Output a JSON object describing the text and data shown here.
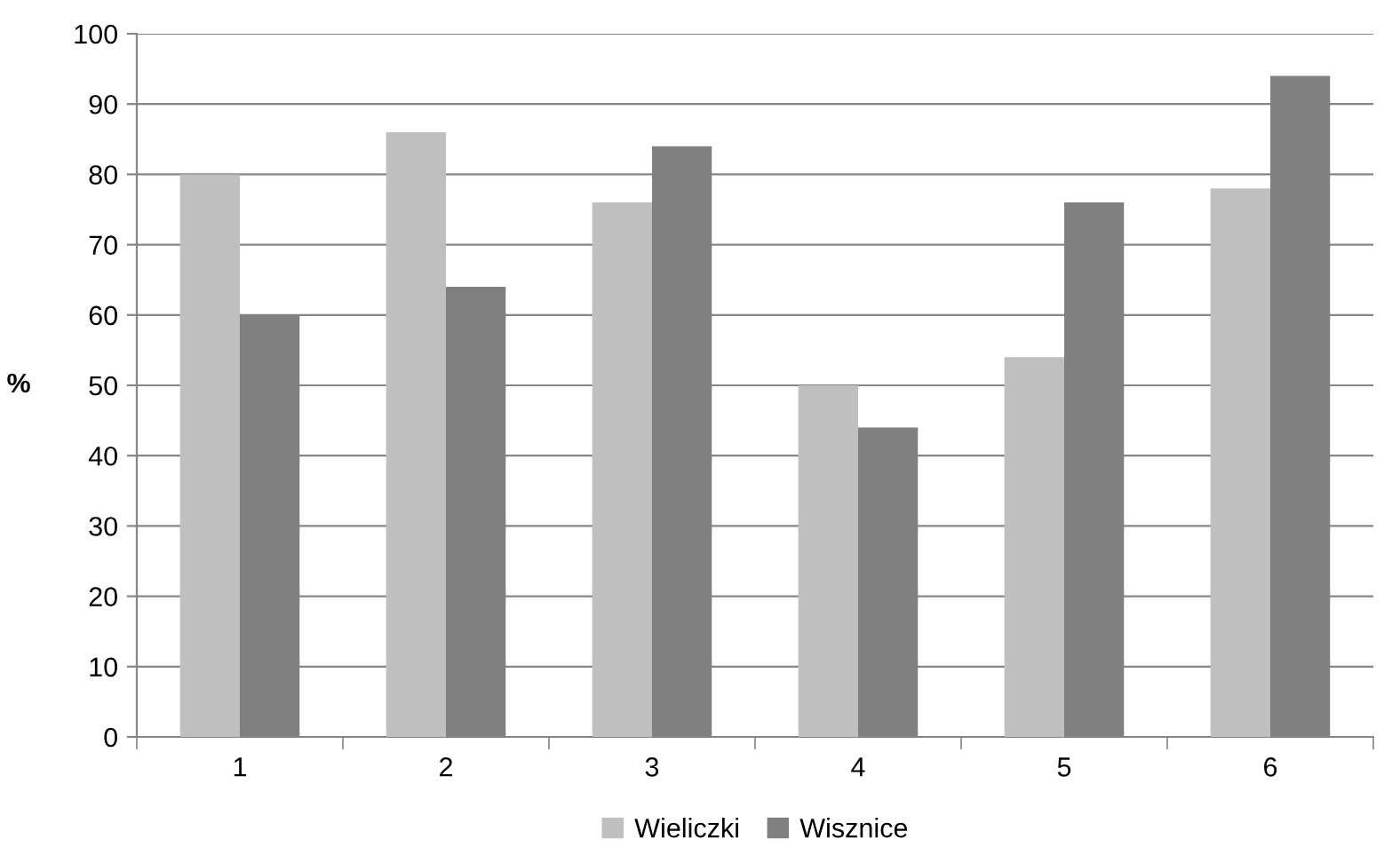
{
  "chart_data": {
    "type": "bar",
    "ylabel": "%",
    "categories": [
      "1",
      "2",
      "3",
      "4",
      "5",
      "6"
    ],
    "series": [
      {
        "name": "Wieliczki",
        "color": "#bfbfbf",
        "values": [
          80,
          86,
          76,
          50,
          54,
          78
        ]
      },
      {
        "name": "Wisznice",
        "color": "#808080",
        "values": [
          60,
          64,
          84,
          44,
          76,
          94
        ]
      }
    ],
    "ylim": [
      0,
      100
    ],
    "yticks": [
      0,
      10,
      20,
      30,
      40,
      50,
      60,
      70,
      80,
      90,
      100
    ],
    "grid": "y",
    "legend": "bottom"
  }
}
